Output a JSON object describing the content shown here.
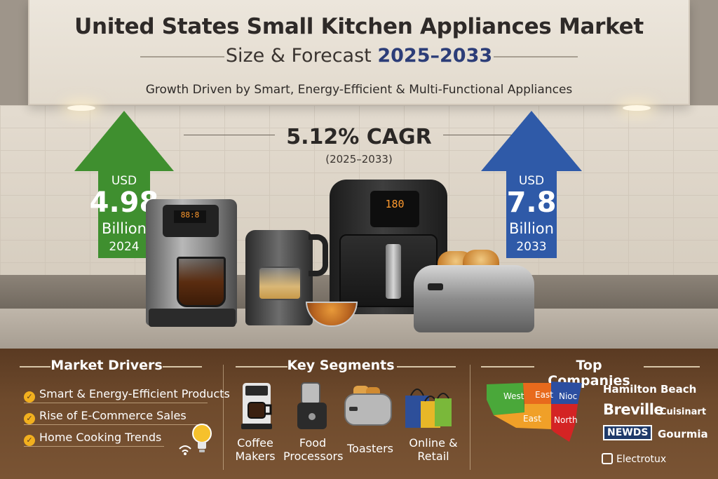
{
  "header": {
    "title": "United States Small Kitchen Appliances Market",
    "subtitle_prefix": "Size & Forecast",
    "subtitle_years": "2025–2033",
    "tagline": "Growth Driven by Smart, Energy-Efficient & Multi-Functional Appliances"
  },
  "cagr": {
    "value": "5.12% CAGR",
    "period": "(2025–2033)"
  },
  "market_2024": {
    "unit": "USD",
    "amount": "4.98",
    "scale": "Billion",
    "year": "2024",
    "color": "#3f8f2f"
  },
  "market_2033": {
    "unit": "USD",
    "amount": "7.8",
    "scale": "Billion",
    "year": "2033",
    "color": "#2f5aa8"
  },
  "appliance_displays": {
    "coffee": "88:8",
    "air_fryer": "180"
  },
  "drivers": {
    "title": "Market Drivers",
    "items": [
      "Smart & Energy-Efficient Products",
      "Rise of E-Commerce Sales",
      "Home Cooking Trends"
    ],
    "icon": "lightbulb-icon"
  },
  "segments": {
    "title": "Key Segments",
    "items": [
      {
        "line1": "Coffee",
        "line2": "Makers",
        "icon": "coffee-maker-icon"
      },
      {
        "line1": "Food",
        "line2": "Processors",
        "icon": "food-processor-icon"
      },
      {
        "line1": "Toasters",
        "line2": "",
        "icon": "toaster-icon"
      },
      {
        "line1": "Online &",
        "line2": "Retail",
        "icon": "shopping-bags-icon"
      }
    ]
  },
  "companies": {
    "title": "Top Companies",
    "map_regions": [
      "West",
      "East",
      "Nioc",
      "East",
      "North"
    ],
    "names": [
      "Hamilton Beach",
      "Breville",
      ".Cuisinart",
      "NEWDS",
      "Gourmia",
      "Electrotux"
    ]
  },
  "colors": {
    "accent_blue": "#2c3d78",
    "driver_check": "#f2b01e",
    "panel_brown": "#5a3a22"
  }
}
